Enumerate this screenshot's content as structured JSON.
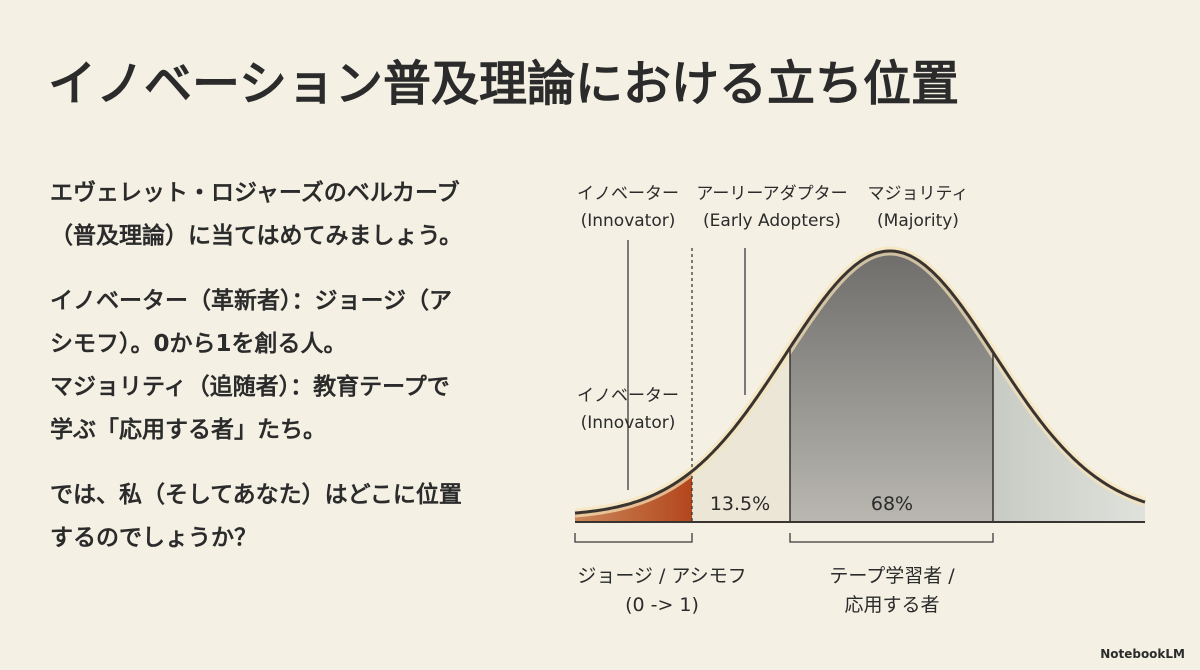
{
  "title": "イノベーション普及理論における立ち位置",
  "body": {
    "paragraphs": [
      [
        "エヴェレット・ロジャーズのベルカーブ",
        "（普及理論）に当てはめてみましょう。"
      ],
      [
        "イノベーター（革新者）：ジョージ（ア",
        "シモフ）。0から1を創る人。",
        "マジョリティ（追随者）：教育テープで",
        "学ぶ「応用する者」たち。"
      ],
      [
        "では、私（そしてあなた）はどこに位置",
        "するのでしょうか？"
      ]
    ]
  },
  "diagram": {
    "top_labels": [
      {
        "name": "イノベーター",
        "english": "(Innovator)"
      },
      {
        "name": "アーリーアダプター",
        "english": "(Early Adopters)"
      },
      {
        "name": "マジョリティ",
        "english": "(Majority)"
      }
    ],
    "side_label": {
      "name": "イノベーター",
      "english": "(Innovator)"
    },
    "segment_labels": [
      "13.5%",
      "68%"
    ],
    "bottom_labels": [
      [
        "ジョージ / アシモフ",
        "(0 -> 1)"
      ],
      [
        "テープ学習者 /",
        "応用する者"
      ]
    ]
  },
  "brand": "NotebookLM"
}
